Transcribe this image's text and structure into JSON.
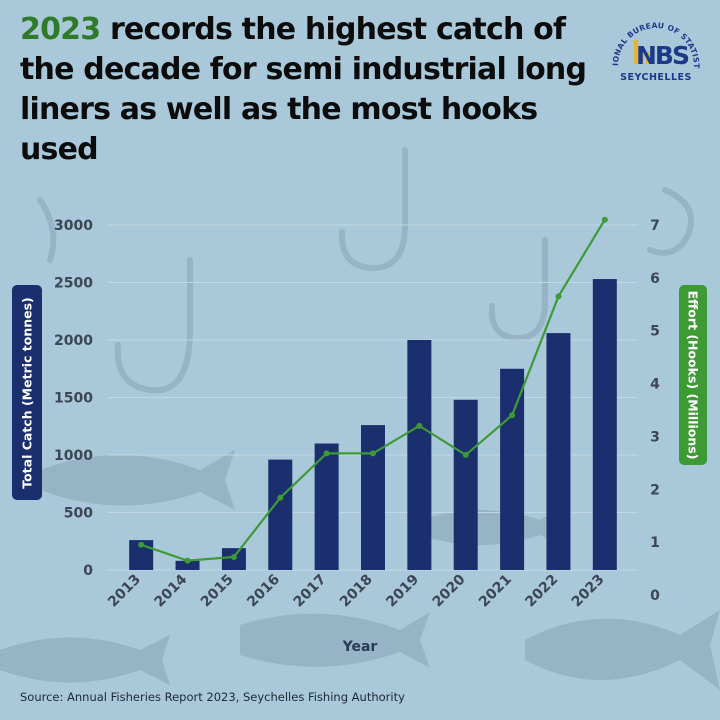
{
  "headline": {
    "highlight": "2023",
    "rest": " records the highest catch of the decade for semi industrial long liners as well as the most hooks used"
  },
  "logo": {
    "ring_text": "NATIONAL BUREAU OF STATISTICS",
    "letters": "NBS",
    "country": "SEYCHELLES"
  },
  "source": "Source: Annual Fisheries Report 2023, Seychelles Fishing Authority",
  "colors": {
    "bar": "#1b2f6e",
    "line": "#3d9a35",
    "headline_highlight": "#2f7b2a"
  },
  "chart_data": {
    "type": "bar",
    "categories": [
      "2013",
      "2014",
      "2015",
      "2016",
      "2017",
      "2018",
      "2019",
      "2020",
      "2021",
      "2022",
      "2023"
    ],
    "xlabel": "Year",
    "ylabel": "Total Catch (Metric tonnes)",
    "y2label": "Effort (Hooks) (Millions)",
    "ylim": [
      0,
      3000
    ],
    "y2lim": [
      0,
      7
    ],
    "yticks": [
      0,
      500,
      1000,
      1500,
      2000,
      2500,
      3000
    ],
    "y2ticks": [
      0,
      1,
      2,
      3,
      4,
      5,
      6,
      7
    ],
    "grid": true,
    "series": [
      {
        "type": "bar",
        "axis": "left",
        "values": [
          260,
          80,
          190,
          960,
          1100,
          1260,
          2000,
          1480,
          1750,
          2060,
          2530
        ]
      },
      {
        "type": "line",
        "axis": "right",
        "values": [
          0.95,
          0.65,
          0.72,
          1.84,
          2.68,
          2.68,
          3.2,
          2.65,
          3.4,
          5.65,
          7.1
        ]
      }
    ]
  }
}
